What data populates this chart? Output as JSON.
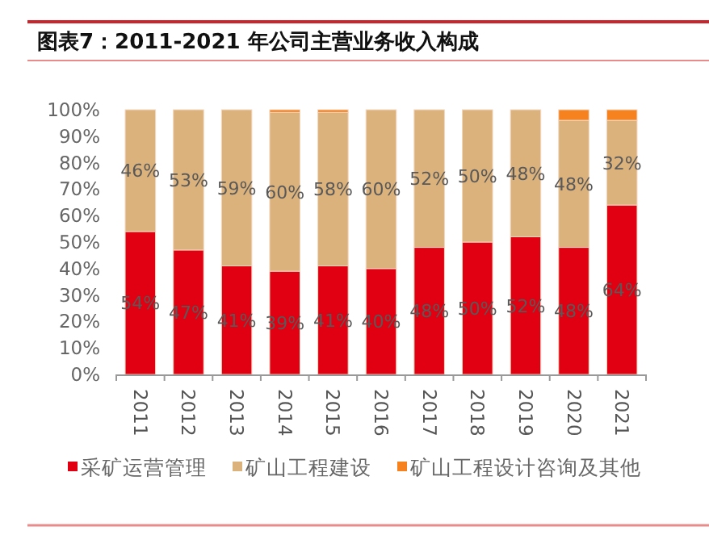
{
  "chart_data": {
    "type": "bar",
    "stacked": true,
    "title": "图表7：2011-2021 年公司主营业务收入构成",
    "categories": [
      "2011",
      "2012",
      "2013",
      "2014",
      "2015",
      "2016",
      "2017",
      "2018",
      "2019",
      "2020",
      "2021"
    ],
    "series": [
      {
        "name": "采矿运营管理",
        "color": "#e10012",
        "values": [
          54,
          47,
          41,
          39,
          41,
          40,
          48,
          50,
          52,
          48,
          64
        ],
        "value_labels": [
          "54%",
          "47%",
          "41%",
          "39%",
          "41%",
          "40%",
          "48%",
          "50%",
          "52%",
          "48%",
          "64%"
        ]
      },
      {
        "name": "矿山工程建设",
        "color": "#dbb27c",
        "values": [
          46,
          53,
          59,
          60,
          58,
          60,
          52,
          50,
          48,
          48,
          32
        ],
        "value_labels": [
          "46%",
          "53%",
          "59%",
          "60%",
          "58%",
          "60%",
          "52%",
          "50%",
          "48%",
          "48%",
          "32%"
        ]
      },
      {
        "name": "矿山工程设计咨询及其他",
        "color": "#f5821f",
        "values": [
          0,
          0,
          0,
          1,
          1,
          0,
          0,
          0,
          0,
          4,
          4
        ],
        "value_labels": [
          null,
          null,
          null,
          null,
          null,
          null,
          null,
          null,
          null,
          null,
          null
        ]
      }
    ],
    "ylim": [
      0,
      100
    ],
    "yticks": [
      {
        "value": 0,
        "label": "0%"
      },
      {
        "value": 10,
        "label": "10%"
      },
      {
        "value": 20,
        "label": "20%"
      },
      {
        "value": 30,
        "label": "30%"
      },
      {
        "value": 40,
        "label": "40%"
      },
      {
        "value": 50,
        "label": "50%"
      },
      {
        "value": 60,
        "label": "60%"
      },
      {
        "value": 70,
        "label": "70%"
      },
      {
        "value": 80,
        "label": "80%"
      },
      {
        "value": 90,
        "label": "90%"
      },
      {
        "value": 100,
        "label": "100%"
      }
    ],
    "grid": false,
    "legend": "bottom"
  }
}
